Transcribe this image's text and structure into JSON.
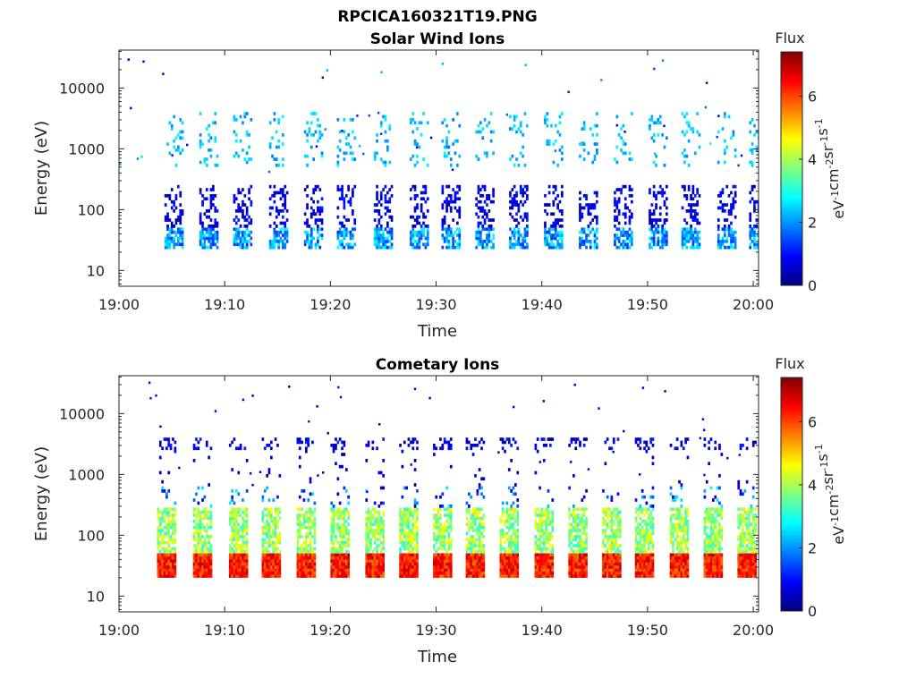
{
  "figure": {
    "title": "RPCICA160321T19.PNG"
  },
  "chart_data": [
    {
      "type": "heatmap",
      "title": "Solar Wind Ions",
      "xlabel": "Time",
      "ylabel": "Energy (eV)",
      "x_tick_labels": [
        "19:00",
        "19:10",
        "19:20",
        "19:30",
        "19:40",
        "19:50",
        "20:00"
      ],
      "x_ticks_minutes": [
        0,
        10,
        20,
        30,
        40,
        50,
        60
      ],
      "xlim_minutes": [
        0,
        60.5
      ],
      "y_scale": "log",
      "y_tick_labels": [
        "10",
        "100",
        "1000",
        "10000"
      ],
      "y_ticks": [
        10,
        100,
        1000,
        10000
      ],
      "ylim": [
        5.5,
        42000
      ],
      "colorbar": {
        "label_top": "Flux",
        "ticks": [
          "0",
          "2",
          "4",
          "6"
        ],
        "range": [
          0,
          7.4
        ],
        "colormap": "jet",
        "unit_base": "eV",
        "unit_exponent": "-1",
        "unit_rest": "cm",
        "unit_rest_exponent": "-2",
        "unit_sr": "sr",
        "unit_sr_exponent": "-1",
        "unit_s": "s",
        "unit_s_exponent": "-1"
      },
      "scan_start_minutes": [
        4.3,
        7.6,
        10.8,
        14.2,
        17.5,
        20.6,
        24.1,
        27.5,
        30.5,
        33.7,
        36.9,
        40.2,
        43.5,
        46.8,
        50.1,
        53.2,
        56.6,
        59.6
      ],
      "intensity": {
        "low_energy_band": [
          1.2,
          2.9
        ],
        "high_energy_band": [
          1.8,
          2.8
        ],
        "mid_energy": [
          0.3,
          1.2
        ]
      },
      "energy_range_eV": [
        22,
        3600
      ]
    },
    {
      "type": "heatmap",
      "title": "Cometary Ions",
      "xlabel": "Time",
      "ylabel": "Energy (eV)",
      "x_tick_labels": [
        "19:00",
        "19:10",
        "19:20",
        "19:30",
        "19:40",
        "19:50",
        "20:00"
      ],
      "x_ticks_minutes": [
        0,
        10,
        20,
        30,
        40,
        50,
        60
      ],
      "xlim_minutes": [
        0,
        60.5
      ],
      "y_scale": "log",
      "y_tick_labels": [
        "10",
        "100",
        "1000",
        "10000"
      ],
      "y_ticks": [
        10,
        100,
        1000,
        10000
      ],
      "ylim": [
        5.5,
        42000
      ],
      "colorbar": {
        "label_top": "Flux",
        "ticks": [
          "0",
          "2",
          "4",
          "6"
        ],
        "range": [
          0,
          7.4
        ],
        "colormap": "jet",
        "unit_base": "eV",
        "unit_exponent": "-1",
        "unit_rest": "cm",
        "unit_rest_exponent": "-2",
        "unit_sr": "sr",
        "unit_sr_exponent": "-1",
        "unit_s": "s",
        "unit_s_exponent": "-1"
      },
      "scan_start_minutes": [
        3.6,
        7.0,
        10.4,
        13.5,
        16.8,
        20.0,
        23.3,
        26.5,
        29.7,
        32.8,
        36.0,
        39.3,
        42.5,
        45.7,
        48.8,
        52.1,
        55.3,
        58.5
      ],
      "intensity": {
        "core_30eV": [
          5.6,
          7.0
        ],
        "core_40eV": [
          4.8,
          6.4
        ],
        "mid_band_60_250eV": [
          3.0,
          4.8
        ],
        "high_energy_band": [
          0.2,
          1.2
        ]
      },
      "energy_range_eV": [
        18,
        4000
      ]
    }
  ]
}
